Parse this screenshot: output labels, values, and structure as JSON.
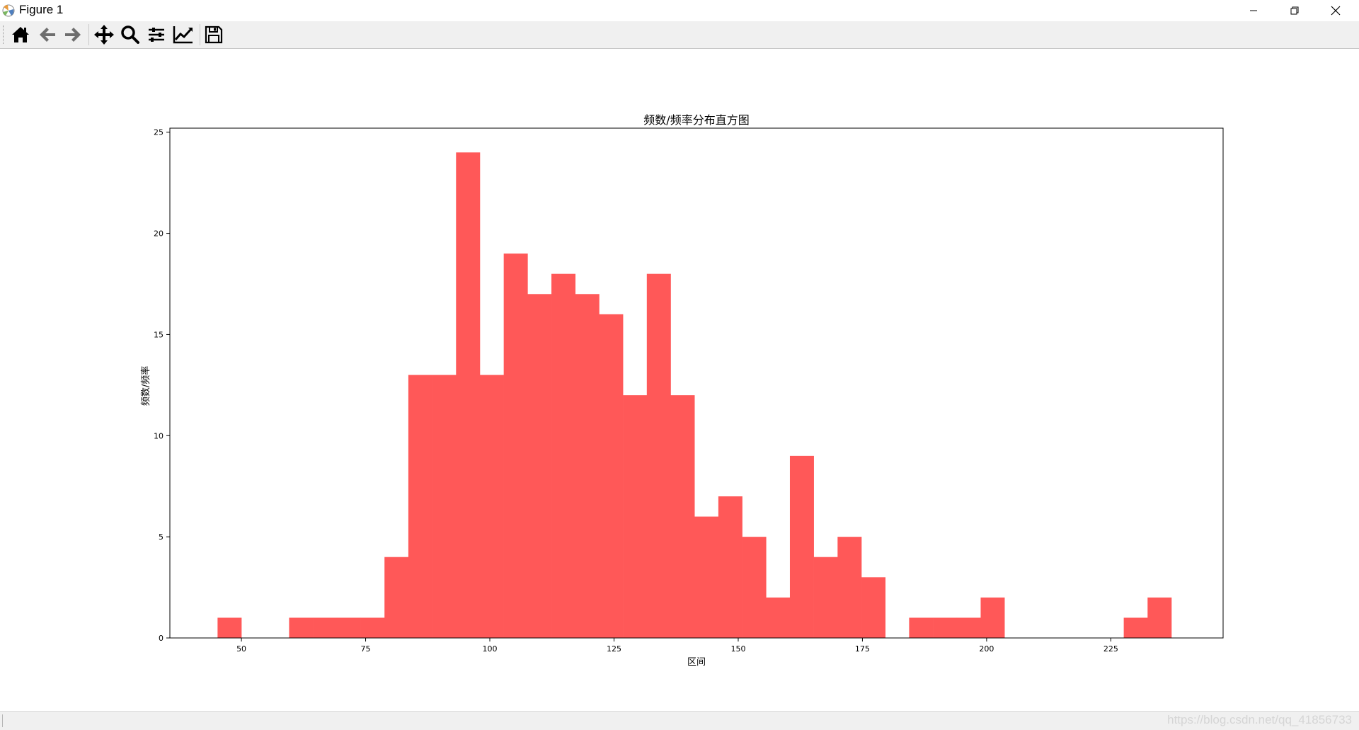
{
  "window": {
    "title": "Figure 1",
    "icons": [
      "matplotlib-icon",
      "minimize-icon",
      "restore-icon",
      "close-icon"
    ]
  },
  "toolbar": {
    "buttons": [
      {
        "name": "home",
        "icon": "home-icon"
      },
      {
        "name": "back",
        "icon": "arrow-left-icon"
      },
      {
        "name": "forward",
        "icon": "arrow-right-icon"
      },
      {
        "name": "pan",
        "icon": "move-icon"
      },
      {
        "name": "zoom",
        "icon": "magnifier-icon"
      },
      {
        "name": "subplots",
        "icon": "sliders-icon"
      },
      {
        "name": "edit-axis",
        "icon": "line-chart-icon"
      },
      {
        "name": "save",
        "icon": "floppy-disk-icon"
      }
    ]
  },
  "statusbar": {
    "watermark": "https://blog.csdn.net/qq_41856733"
  },
  "chart_data": {
    "type": "bar",
    "title": "频数/频率分布直方图",
    "xlabel": "区间",
    "ylabel": "频数/频率",
    "color": "#ff5858",
    "bin_width": 4.8,
    "bins": [
      {
        "x0": 45.2,
        "count": 1
      },
      {
        "x0": 59.6,
        "count": 1
      },
      {
        "x0": 64.4,
        "count": 1
      },
      {
        "x0": 69.2,
        "count": 1
      },
      {
        "x0": 74.0,
        "count": 1
      },
      {
        "x0": 78.8,
        "count": 4
      },
      {
        "x0": 83.6,
        "count": 13
      },
      {
        "x0": 88.4,
        "count": 13
      },
      {
        "x0": 93.2,
        "count": 24
      },
      {
        "x0": 98.0,
        "count": 13
      },
      {
        "x0": 102.8,
        "count": 19
      },
      {
        "x0": 107.6,
        "count": 17
      },
      {
        "x0": 112.4,
        "count": 18
      },
      {
        "x0": 117.2,
        "count": 17
      },
      {
        "x0": 122.0,
        "count": 16
      },
      {
        "x0": 126.8,
        "count": 12
      },
      {
        "x0": 131.6,
        "count": 18
      },
      {
        "x0": 136.4,
        "count": 12
      },
      {
        "x0": 141.2,
        "count": 6
      },
      {
        "x0": 146.0,
        "count": 7
      },
      {
        "x0": 150.8,
        "count": 5
      },
      {
        "x0": 155.6,
        "count": 2
      },
      {
        "x0": 160.4,
        "count": 9
      },
      {
        "x0": 165.2,
        "count": 4
      },
      {
        "x0": 170.0,
        "count": 5
      },
      {
        "x0": 174.8,
        "count": 3
      },
      {
        "x0": 184.4,
        "count": 1
      },
      {
        "x0": 189.2,
        "count": 1
      },
      {
        "x0": 194.0,
        "count": 1
      },
      {
        "x0": 198.8,
        "count": 2
      },
      {
        "x0": 227.6,
        "count": 1
      },
      {
        "x0": 232.4,
        "count": 2
      }
    ],
    "xlim": [
      35.6,
      247.6
    ],
    "ylim": [
      0,
      25.2
    ],
    "xticks": [
      50,
      75,
      100,
      125,
      150,
      175,
      200,
      225
    ],
    "yticks": [
      0,
      5,
      10,
      15,
      20,
      25
    ],
    "grid": false,
    "legend": false
  }
}
